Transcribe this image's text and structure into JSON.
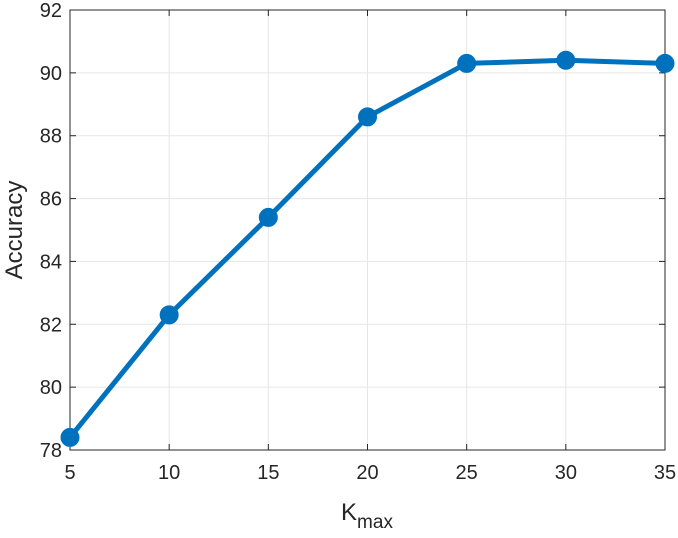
{
  "chart_data": {
    "type": "line",
    "x": [
      5,
      10,
      15,
      20,
      25,
      30,
      35
    ],
    "series": [
      {
        "values": [
          78.4,
          82.3,
          85.4,
          88.6,
          90.3,
          90.4,
          90.3
        ]
      }
    ],
    "xlabel": "K",
    "xlabel_sub": "max",
    "ylabel": "Accuracy",
    "xlim": [
      5,
      35
    ],
    "ylim": [
      78,
      92
    ],
    "xticks": [
      5,
      10,
      15,
      20,
      25,
      30,
      35
    ],
    "yticks": [
      78,
      80,
      82,
      84,
      86,
      88,
      90,
      92
    ],
    "grid": true,
    "marker": "circle",
    "line_color": "#0072BD"
  }
}
